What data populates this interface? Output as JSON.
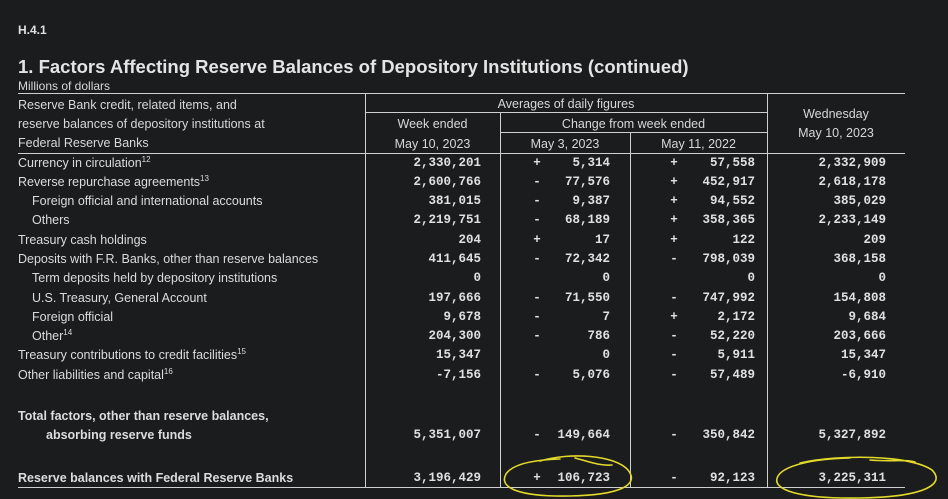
{
  "doc_id": "H.4.1",
  "title": "1. Factors Affecting Reserve Balances of Depository Institutions (continued)",
  "units": "Millions of dollars",
  "header": {
    "stub": [
      "Reserve Bank credit, related items, and",
      "reserve balances of depository institutions at",
      "Federal Reserve Banks"
    ],
    "averages": "Averages of daily figures",
    "week_ended": "Week ended",
    "week_ended_date": "May 10, 2023",
    "change_from": "Change from week ended",
    "change_date_1": "May 3, 2023",
    "change_date_2": "May 11, 2022",
    "wednesday": "Wednesday",
    "wednesday_date": "May 10, 2023"
  },
  "rows": [
    {
      "label": "Currency in circulation",
      "note": "12",
      "indent": false,
      "week": "2,330,201",
      "s1": "+",
      "ch1": "5,314",
      "s2": "+",
      "ch2": "57,558",
      "wed": "2,332,909"
    },
    {
      "label": "Reverse repurchase agreements",
      "note": "13",
      "indent": false,
      "week": "2,600,766",
      "s1": "-",
      "ch1": "77,576",
      "s2": "+",
      "ch2": "452,917",
      "wed": "2,618,178"
    },
    {
      "label": "Foreign official and international accounts",
      "note": "",
      "indent": true,
      "week": "381,015",
      "s1": "-",
      "ch1": "9,387",
      "s2": "+",
      "ch2": "94,552",
      "wed": "385,029"
    },
    {
      "label": "Others",
      "note": "",
      "indent": true,
      "week": "2,219,751",
      "s1": "-",
      "ch1": "68,189",
      "s2": "+",
      "ch2": "358,365",
      "wed": "2,233,149"
    },
    {
      "label": "Treasury cash holdings",
      "note": "",
      "indent": false,
      "week": "204",
      "s1": "+",
      "ch1": "17",
      "s2": "+",
      "ch2": "122",
      "wed": "209"
    },
    {
      "label": "Deposits with F.R. Banks, other than reserve balances",
      "note": "",
      "indent": false,
      "week": "411,645",
      "s1": "-",
      "ch1": "72,342",
      "s2": "-",
      "ch2": "798,039",
      "wed": "368,158"
    },
    {
      "label": "Term deposits held by depository institutions",
      "note": "",
      "indent": true,
      "week": "0",
      "s1": "",
      "ch1": "0",
      "s2": "",
      "ch2": "0",
      "wed": "0"
    },
    {
      "label": "U.S. Treasury, General Account",
      "note": "",
      "indent": true,
      "week": "197,666",
      "s1": "-",
      "ch1": "71,550",
      "s2": "-",
      "ch2": "747,992",
      "wed": "154,808"
    },
    {
      "label": "Foreign official",
      "note": "",
      "indent": true,
      "week": "9,678",
      "s1": "-",
      "ch1": "7",
      "s2": "+",
      "ch2": "2,172",
      "wed": "9,684"
    },
    {
      "label": "Other",
      "note": "14",
      "indent": true,
      "week": "204,300",
      "s1": "-",
      "ch1": "786",
      "s2": "-",
      "ch2": "52,220",
      "wed": "203,666"
    },
    {
      "label": "Treasury contributions to credit facilities",
      "note": "15",
      "indent": false,
      "week": "15,347",
      "s1": "",
      "ch1": "0",
      "s2": "-",
      "ch2": "5,911",
      "wed": "15,347"
    },
    {
      "label": "Other liabilities and capital",
      "note": "16",
      "indent": false,
      "week": "-7,156",
      "s1": "-",
      "ch1": "5,076",
      "s2": "-",
      "ch2": "57,489",
      "wed": "-6,910"
    }
  ],
  "total_factors": {
    "label_1": "Total factors, other than reserve balances,",
    "label_2": "absorbing reserve funds",
    "week": "5,351,007",
    "s1": "-",
    "ch1": "149,664",
    "s2": "-",
    "ch2": "350,842",
    "wed": "5,327,892"
  },
  "reserve_balances": {
    "label": "Reserve balances with Federal Reserve Banks",
    "week": "3,196,429",
    "s1": "+",
    "ch1": "106,723",
    "s2": "-",
    "ch2": "92,123",
    "wed": "3,225,311"
  },
  "colors": {
    "background": "#1b1c1e",
    "text": "#dcdcdc",
    "annotation": "#e3d92a"
  }
}
